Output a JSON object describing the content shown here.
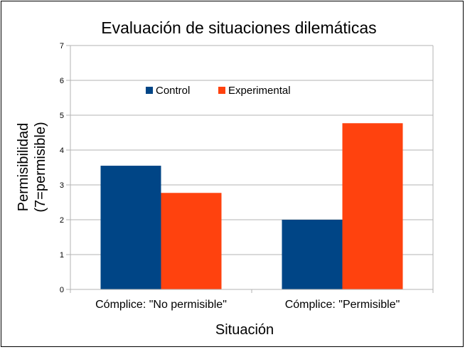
{
  "chart_data": {
    "type": "bar",
    "title": "Evaluación de situaciones dilemáticas",
    "xlabel": "Situación",
    "ylabel_lines": [
      "Permisibilidad",
      "(7=permisible)"
    ],
    "categories": [
      "Cómplice: \"No permisible\"",
      "Cómplice: \"Permisible\""
    ],
    "series": [
      {
        "name": "Control",
        "values": [
          3.55,
          2.0
        ],
        "color": "#004586"
      },
      {
        "name": "Experimental",
        "values": [
          2.77,
          4.77
        ],
        "color": "#ff420e"
      }
    ],
    "ylim": [
      0,
      7
    ],
    "yticks": [
      "0",
      "1",
      "2",
      "3",
      "4",
      "5",
      "6",
      "7"
    ],
    "grid": true,
    "legend_position": "top-left inside plot"
  }
}
